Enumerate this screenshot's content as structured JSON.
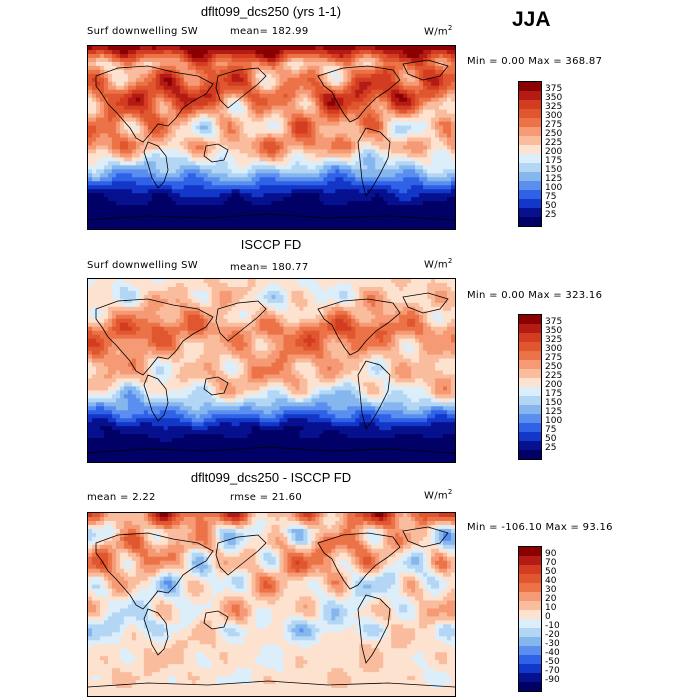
{
  "season": "JJA",
  "units_label": "W/m",
  "units_exp": "2",
  "chart_data": [
    {
      "type": "heatmap",
      "title": "dflt099_dcs250 (yrs 1-1)",
      "variable": "Surf downwelling SW",
      "stat_text": "mean=  182.99",
      "minmax_text": "Min =    0.00 Max =  368.87",
      "min": 0.0,
      "max": 368.87,
      "mean": 182.99,
      "colorbar_levels": [
        "375",
        "350",
        "325",
        "300",
        "275",
        "250",
        "225",
        "200",
        "175",
        "150",
        "125",
        "100",
        "75",
        "50",
        "25"
      ],
      "colors": [
        "#8b0000",
        "#b31b14",
        "#d33c20",
        "#e0562f",
        "#ec7347",
        "#f59a74",
        "#f9bd9e",
        "#fde2d0",
        "#dceefa",
        "#b4d6f5",
        "#86b6ee",
        "#5a8ff0",
        "#2f62e6",
        "#1337c8",
        "#07108f",
        "#000066"
      ],
      "bands": [
        {
          "lat": "90N",
          "band": 15,
          "var": 1
        },
        {
          "lat": "70N",
          "band": 10,
          "var": 3
        },
        {
          "lat": "50N",
          "band": 11,
          "var": 3
        },
        {
          "lat": "30N",
          "band": 12,
          "var": 3
        },
        {
          "lat": "15N",
          "band": 10,
          "var": 3
        },
        {
          "lat": "0",
          "band": 9,
          "var": 3
        },
        {
          "lat": "15S",
          "band": 10,
          "var": 2
        },
        {
          "lat": "30S",
          "band": 7,
          "var": 2
        },
        {
          "lat": "45S",
          "band": 4,
          "var": 1
        },
        {
          "lat": "60S",
          "band": 1,
          "var": 1
        },
        {
          "lat": "75S",
          "band": 0,
          "var": 0
        },
        {
          "lat": "90S",
          "band": 0,
          "var": 0
        }
      ]
    },
    {
      "type": "heatmap",
      "title": "ISCCP FD",
      "variable": "Surf downwelling SW",
      "stat_text": "mean=  180.77",
      "minmax_text": "Min =    0.00 Max =  323.16",
      "min": 0.0,
      "max": 323.16,
      "mean": 180.77,
      "colorbar_levels": [
        "375",
        "350",
        "325",
        "300",
        "275",
        "250",
        "225",
        "200",
        "175",
        "150",
        "125",
        "100",
        "75",
        "50",
        "25"
      ],
      "colors": [
        "#8b0000",
        "#b31b14",
        "#d33c20",
        "#e0562f",
        "#ec7347",
        "#f59a74",
        "#f9bd9e",
        "#fde2d0",
        "#dceefa",
        "#b4d6f5",
        "#86b6ee",
        "#5a8ff0",
        "#2f62e6",
        "#1337c8",
        "#07108f",
        "#000066"
      ],
      "bands": [
        {
          "lat": "90N",
          "band": 8,
          "var": 1
        },
        {
          "lat": "70N",
          "band": 8,
          "var": 2
        },
        {
          "lat": "50N",
          "band": 9,
          "var": 2
        },
        {
          "lat": "30N",
          "band": 11,
          "var": 2
        },
        {
          "lat": "15N",
          "band": 10,
          "var": 2
        },
        {
          "lat": "0",
          "band": 9,
          "var": 2
        },
        {
          "lat": "15S",
          "band": 9,
          "var": 2
        },
        {
          "lat": "30S",
          "band": 7,
          "var": 2
        },
        {
          "lat": "45S",
          "band": 4,
          "var": 1
        },
        {
          "lat": "60S",
          "band": 1,
          "var": 1
        },
        {
          "lat": "75S",
          "band": 0,
          "var": 0
        },
        {
          "lat": "90S",
          "band": 0,
          "var": 0
        }
      ]
    },
    {
      "type": "heatmap",
      "title": "dflt099_dcs250 - ISCCP FD",
      "variable": "",
      "stat_text": "mean =    2.22",
      "rmse_text": "rmse =   21.60",
      "minmax_text": "Min = -106.10 Max =   93.16",
      "min": -106.1,
      "max": 93.16,
      "mean": 2.22,
      "rmse": 21.6,
      "colorbar_levels": [
        "90",
        "70",
        "50",
        "40",
        "30",
        "20",
        "10",
        "0",
        "-10",
        "-20",
        "-30",
        "-40",
        "-50",
        "-70",
        "-90"
      ],
      "colors": [
        "#8b0000",
        "#b31b14",
        "#d33c20",
        "#e0562f",
        "#ec7347",
        "#f59a74",
        "#f9bd9e",
        "#fde2d0",
        "#dceefa",
        "#b4d6f5",
        "#86b6ee",
        "#5a8ff0",
        "#2f62e6",
        "#1337c8",
        "#07108f",
        "#000066"
      ],
      "bands": [
        {
          "lat": "90N",
          "band": 11,
          "var": 3
        },
        {
          "lat": "70N",
          "band": 8,
          "var": 3
        },
        {
          "lat": "50N",
          "band": 9,
          "var": 3
        },
        {
          "lat": "30N",
          "band": 9,
          "var": 3
        },
        {
          "lat": "15N",
          "band": 8,
          "var": 3
        },
        {
          "lat": "0",
          "band": 8,
          "var": 2
        },
        {
          "lat": "15S",
          "band": 8,
          "var": 2
        },
        {
          "lat": "30S",
          "band": 7,
          "var": 2
        },
        {
          "lat": "45S",
          "band": 8,
          "var": 1
        },
        {
          "lat": "60S",
          "band": 8,
          "var": 1
        },
        {
          "lat": "75S",
          "band": 8,
          "var": 1
        },
        {
          "lat": "90S",
          "band": 8,
          "var": 0
        }
      ]
    }
  ]
}
